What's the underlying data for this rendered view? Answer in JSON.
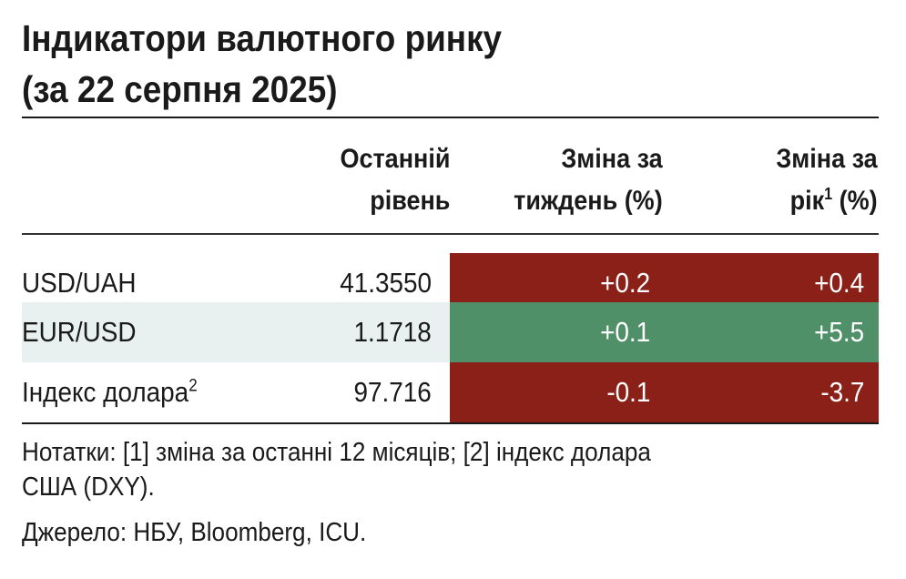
{
  "title": {
    "line1": "Індикатори валютного ринку",
    "line2": "(за 22 серпня 2025)"
  },
  "columns": {
    "level": {
      "line1": "Останній",
      "line2": "рівень"
    },
    "week": {
      "line1": "Зміна за",
      "line2": "тиждень (%)"
    },
    "year": {
      "line1": "Зміна за",
      "line2_pre": "рік",
      "line2_sup": "1",
      "line2_post": " (%)"
    }
  },
  "colors": {
    "negative": "#8b2019",
    "positive": "#509068",
    "row_shade": "#e8f1ef"
  },
  "chart_data": {
    "type": "table",
    "title": "Індикатори валютного ринку (за 22 серпня 2025)",
    "columns": [
      "",
      "Останній рівень",
      "Зміна за тиждень (%)",
      "Зміна за рік1 (%)"
    ],
    "rows": [
      {
        "label": "USD/UAH",
        "label_sup": "",
        "level": "41.3550",
        "week": "+0.2",
        "year": "+0.4",
        "week_color": "#8b2019",
        "year_color": "#8b2019",
        "shaded": false
      },
      {
        "label": "EUR/USD",
        "label_sup": "",
        "level": "1.1718",
        "week": "+0.1",
        "year": "+5.5",
        "week_color": "#509068",
        "year_color": "#509068",
        "shaded": true
      },
      {
        "label": "Індекс долара",
        "label_sup": "2",
        "level": "97.716",
        "week": "-0.1",
        "year": "-3.7",
        "week_color": "#8b2019",
        "year_color": "#8b2019",
        "shaded": false
      }
    ]
  },
  "footer": {
    "notes_line1": "Нотатки: [1] зміна за останні 12 місяців; [2] індекс долара",
    "notes_line2": "США (DXY).",
    "source": "Джерело: НБУ, Bloomberg, ICU."
  }
}
